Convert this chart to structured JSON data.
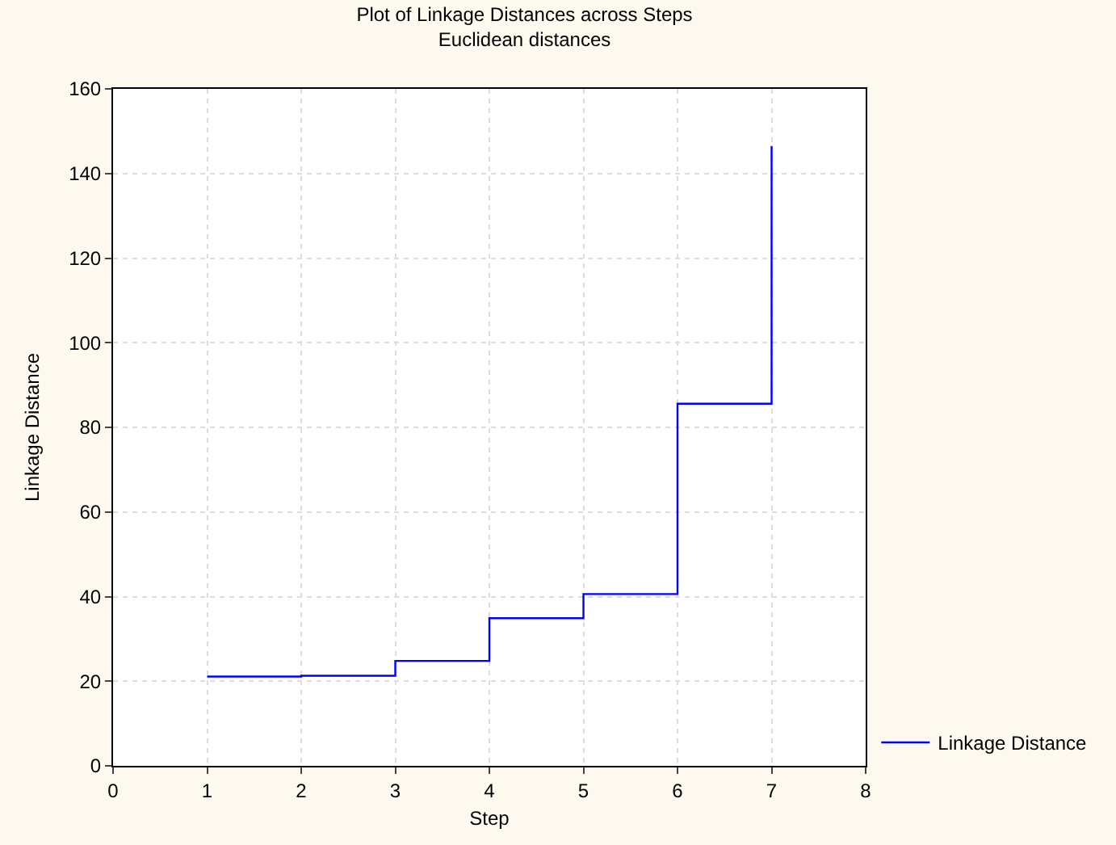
{
  "chart_data": {
    "type": "step",
    "title": "Plot of Linkage Distances across Steps",
    "subtitle": "Euclidean distances",
    "xlabel": "Step",
    "ylabel": "Linkage Distance",
    "x": [
      1,
      2,
      3,
      4,
      5,
      6,
      7
    ],
    "series": [
      {
        "name": "Linkage Distance",
        "color": "#0000ff",
        "values": [
          21.1,
          21.3,
          24.8,
          34.9,
          40.6,
          85.6,
          146.5
        ]
      }
    ],
    "xlim": [
      0,
      8
    ],
    "xticks": [
      0,
      1,
      2,
      3,
      4,
      5,
      6,
      7,
      8
    ],
    "ylim": [
      0,
      160
    ],
    "yticks": [
      0,
      20,
      40,
      60,
      80,
      100,
      120,
      140,
      160
    ],
    "grid": true,
    "legend": "bottom right",
    "marker": "none",
    "line_style": "solid"
  }
}
